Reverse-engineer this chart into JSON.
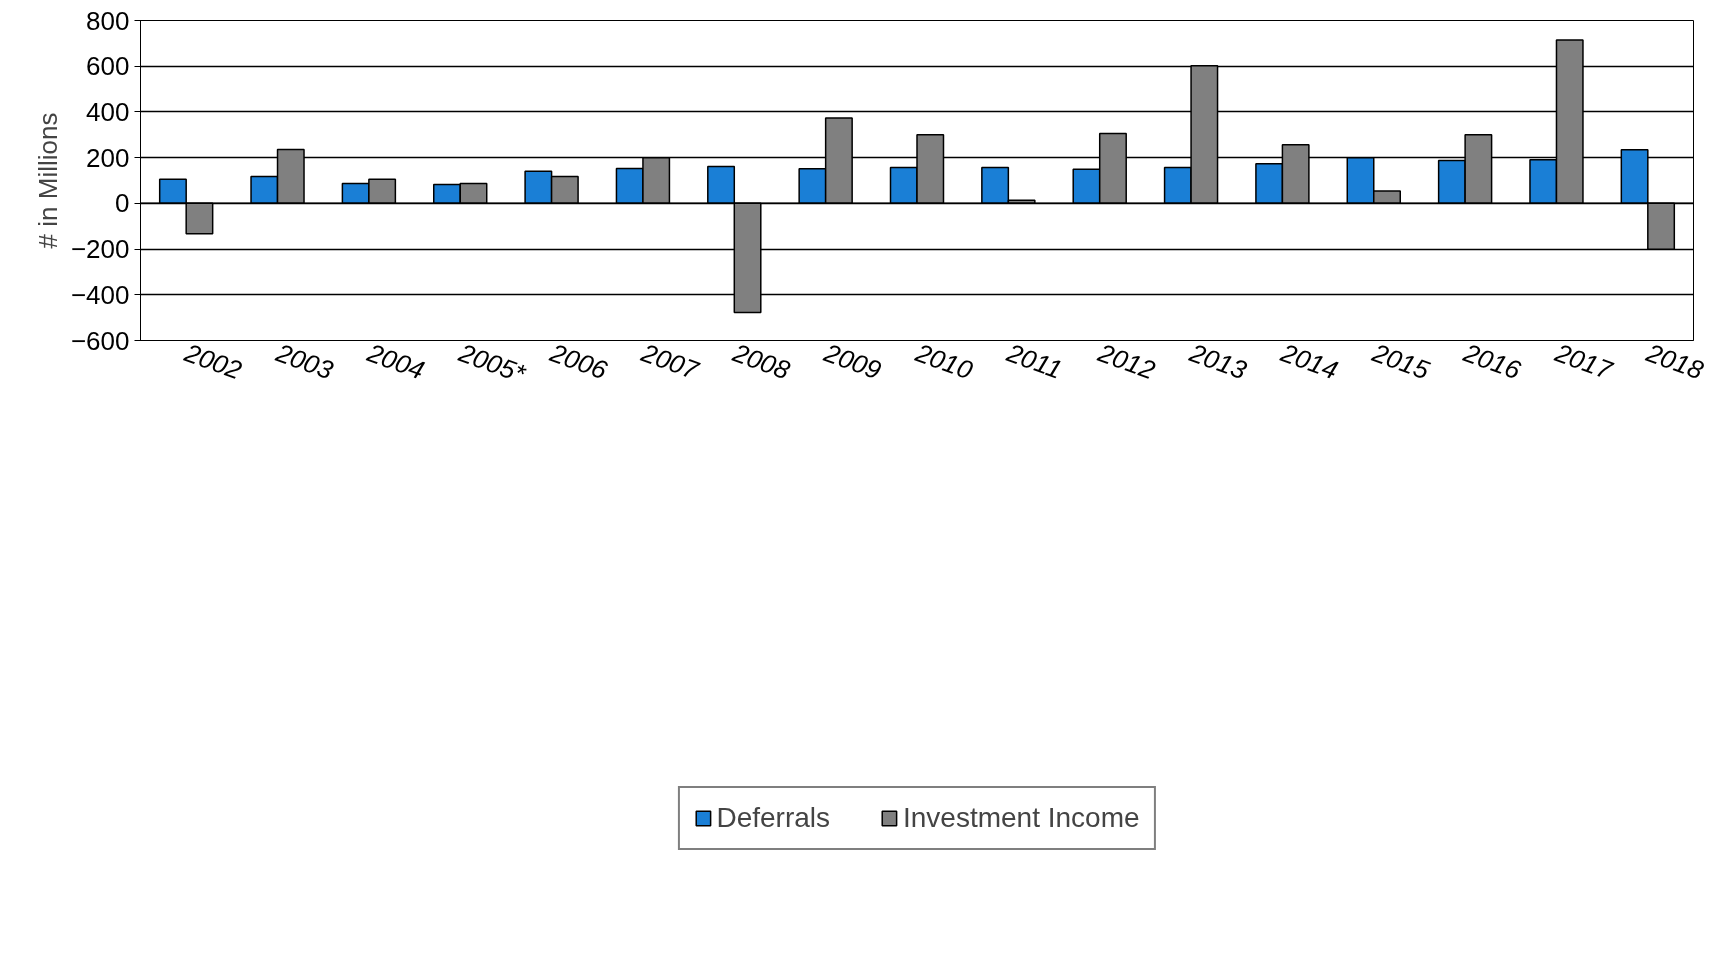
{
  "chart_data": {
    "type": "bar",
    "ylabel": "# in Millions",
    "categories": [
      "2002",
      "2003",
      "2004",
      "2005*",
      "2006",
      "2007",
      "2008",
      "2009",
      "2010",
      "2011",
      "2012",
      "2013",
      "2014",
      "2015",
      "2016",
      "2017",
      "2018"
    ],
    "series": [
      {
        "name": "Deferrals",
        "color": "#1a7fd6",
        "values": [
          105,
          117,
          87,
          83,
          141,
          153,
          161,
          151,
          157,
          157,
          149,
          157,
          173,
          199,
          187,
          191,
          234
        ]
      },
      {
        "name": "Investment Income",
        "color": "#808080",
        "values": [
          -133,
          236,
          105,
          87,
          117,
          199,
          -477,
          373,
          300,
          14,
          306,
          602,
          256,
          54,
          300,
          715,
          -201
        ]
      }
    ],
    "ylim": [
      -600,
      800
    ],
    "yticks": [
      -600,
      -400,
      -200,
      0,
      200,
      400,
      600,
      800
    ],
    "grid": "y",
    "legend": "bottom"
  }
}
